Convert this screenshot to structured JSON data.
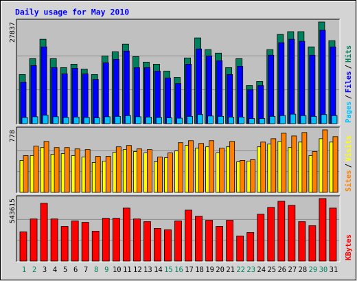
{
  "chart_data": {
    "type": "bar",
    "title": "Daily usage for May 2010",
    "categories": [
      "1",
      "2",
      "3",
      "4",
      "5",
      "6",
      "7",
      "8",
      "9",
      "10",
      "11",
      "12",
      "13",
      "14",
      "15",
      "16",
      "17",
      "18",
      "19",
      "20",
      "21",
      "22",
      "23",
      "24",
      "25",
      "26",
      "27",
      "28",
      "29",
      "30",
      "31"
    ],
    "category_colors": [
      "#00805c",
      "#00805c",
      "#000000",
      "#000000",
      "#000000",
      "#000000",
      "#000000",
      "#00805c",
      "#00805c",
      "#000000",
      "#000000",
      "#000000",
      "#000000",
      "#000000",
      "#00805c",
      "#00805c",
      "#000000",
      "#000000",
      "#000000",
      "#000000",
      "#000000",
      "#00805c",
      "#00805c",
      "#000000",
      "#000000",
      "#000000",
      "#000000",
      "#000000",
      "#00805c",
      "#00805c",
      "#000000"
    ],
    "legend_separator": "/",
    "panels": [
      {
        "ylim": [
          0,
          27837
        ],
        "yticks": [
          27837
        ],
        "series": [
          {
            "name": "Pages",
            "color": "#00c0ff",
            "values": [
              1700,
              1900,
              2300,
              1900,
              1700,
              1800,
              1700,
              1600,
              1900,
              2000,
              2200,
              1900,
              1800,
              1700,
              1600,
              1500,
              2000,
              2500,
              2100,
              2000,
              1800,
              1800,
              1400,
              1400,
              2000,
              2200,
              2600,
              2200,
              2000,
              2500,
              2200
            ]
          },
          {
            "name": "Files",
            "color": "#0000ff",
            "values": [
              11364,
              15910,
              21023,
              15341,
              13637,
              15152,
              13637,
              12122,
              16667,
              17614,
              19887,
              15341,
              15341,
              14394,
              12500,
              10985,
              16288,
              20455,
              18561,
              17235,
              13447,
              15720,
              9281,
              10417,
              18751,
              22160,
              23107,
              22539,
              18751,
              25569,
              21023
            ]
          },
          {
            "name": "Hits",
            "color": "#00805c",
            "values": [
              13447,
              17804,
              23107,
              17804,
              15341,
              16288,
              14963,
              13447,
              18561,
              19698,
              21781,
              18372,
              16857,
              16288,
              14394,
              12690,
              17993,
              23486,
              20266,
              19319,
              15341,
              17804,
              10417,
              11553,
              20266,
              24433,
              25190,
              25190,
              21023,
              27837,
              22728
            ]
          }
        ]
      },
      {
        "ylim": [
          0,
          778
        ],
        "yticks": [
          778
        ],
        "series": [
          {
            "name": "Sites",
            "color": "#ff8000",
            "values": [
              457,
              575,
              634,
              558,
              558,
              541,
              533,
              448,
              448,
              567,
              584,
              541,
              533,
              440,
              491,
              618,
              643,
              609,
              643,
              550,
              634,
              398,
              406,
              626,
              668,
              736,
              702,
              745,
              508,
              778,
              694
            ]
          },
          {
            "name": "Visits",
            "color": "#ffff00",
            "values": [
              398,
              457,
              558,
              474,
              482,
              457,
              440,
              372,
              389,
              499,
              533,
              508,
              491,
              381,
              431,
              516,
              584,
              550,
              567,
              491,
              567,
              381,
              389,
              567,
              601,
              634,
              558,
              626,
              457,
              668,
              626
            ]
          }
        ]
      },
      {
        "ylim": [
          0,
          543615
        ],
        "yticks": [
          543615
        ],
        "series": [
          {
            "name": "KBytes",
            "color": "#ff0000",
            "values": [
              254087,
              366358,
              502265,
              366358,
              301359,
              348631,
              336813,
              259996,
              372267,
              372267,
              460902,
              366358,
              342722,
              283632,
              271814,
              348631,
              443175,
              389994,
              354540,
              301359,
              354540,
              218633,
              248178,
              407721,
              466811,
              519992,
              484538,
              342722,
              307268,
              543615,
              460902
            ]
          }
        ]
      }
    ]
  }
}
